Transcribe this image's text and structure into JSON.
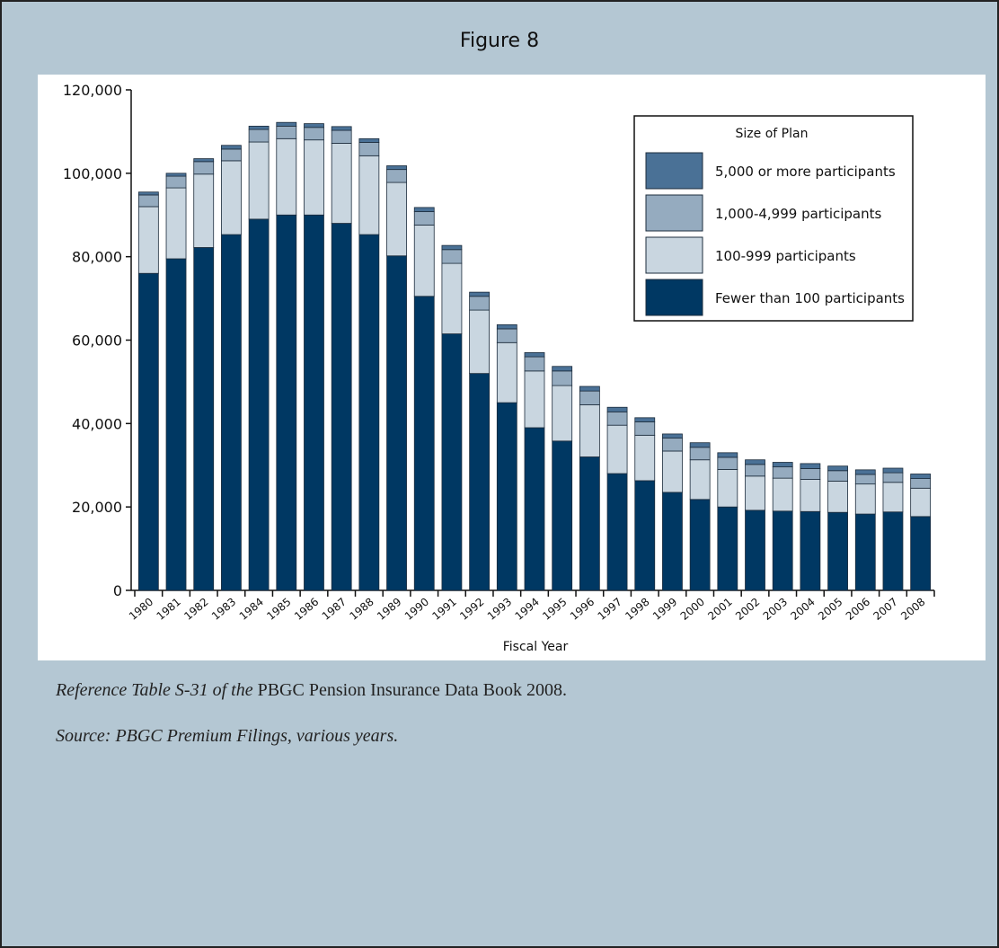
{
  "chart_data": {
    "type": "stacked_bar",
    "title": "Figure 8",
    "x_label": "Fiscal Year",
    "categories": [
      "1980",
      "1981",
      "1982",
      "1983",
      "1984",
      "1985",
      "1986",
      "1987",
      "1988",
      "1989",
      "1990",
      "1991",
      "1992",
      "1993",
      "1994",
      "1995",
      "1996",
      "1997",
      "1998",
      "1999",
      "2000",
      "2001",
      "2002",
      "2003",
      "2004",
      "2005",
      "2006",
      "2007",
      "2008"
    ],
    "legend_title": "Size of Plan",
    "series": [
      {
        "name": "Fewer than 100 participants",
        "color": "#003863",
        "values": [
          76000,
          79500,
          82200,
          85300,
          89000,
          90000,
          90000,
          88000,
          85300,
          80200,
          70500,
          61500,
          52000,
          45000,
          39000,
          35800,
          32000,
          28000,
          26300,
          23500,
          21800,
          20000,
          19200,
          19000,
          18900,
          18700,
          18300,
          18800,
          17700
        ]
      },
      {
        "name": "100-999 participants",
        "color": "#c9d6e0",
        "values": [
          16000,
          17000,
          17600,
          17700,
          18500,
          18300,
          18000,
          19200,
          18900,
          17600,
          17100,
          16900,
          15200,
          14400,
          13600,
          13300,
          12500,
          11600,
          10900,
          9900,
          9500,
          9000,
          8200,
          7900,
          7700,
          7500,
          7200,
          7100,
          6800
        ]
      },
      {
        "name": "1,000-4,999 participants",
        "color": "#95abbf",
        "values": [
          2800,
          2800,
          3000,
          2800,
          3000,
          3000,
          3000,
          3100,
          3200,
          3100,
          3200,
          3300,
          3300,
          3300,
          3400,
          3500,
          3300,
          3200,
          3200,
          3100,
          3000,
          2900,
          2800,
          2700,
          2600,
          2500,
          2300,
          2300,
          2300
        ]
      },
      {
        "name": "5,000 or more participants",
        "color": "#4a7196",
        "values": [
          700,
          700,
          700,
          900,
          800,
          900,
          900,
          900,
          900,
          900,
          1000,
          1000,
          1000,
          1000,
          1000,
          1100,
          1100,
          1100,
          1000,
          1000,
          1100,
          1100,
          1100,
          1100,
          1200,
          1100,
          1100,
          1100,
          1100
        ]
      }
    ],
    "ylim": [
      0,
      120000
    ],
    "yticks": [
      0,
      {
        "value": 20000,
        "label": "20,000"
      },
      {
        "value": 40000,
        "label": "40,000"
      },
      {
        "value": 60000,
        "label": "60,000"
      },
      {
        "value": 80000,
        "label": "80,000"
      },
      {
        "value": 100000,
        "label": "100,000"
      },
      {
        "value": 120000,
        "label": "120,000"
      }
    ],
    "grid": false,
    "legend": "upper right"
  },
  "reference": [
    "Reference Table S-31 of the",
    "PBGC Pension Insurance Data Book 2008."
  ],
  "source": "Source: PBGC Premium Filings, various years."
}
